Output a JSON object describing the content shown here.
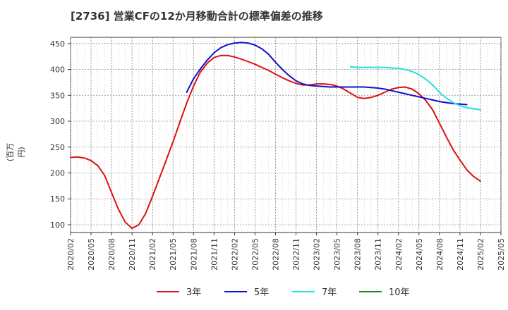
{
  "chart_data": {
    "type": "line",
    "title": "[2736]  営業CFの12か月移動合計の標準偏差の推移",
    "ylabel": "(百万円)",
    "xlabel": "",
    "ylim": [
      85,
      462
    ],
    "yticks": [
      100,
      150,
      200,
      250,
      300,
      350,
      400,
      450
    ],
    "x_ticks": [
      "2020/02",
      "2020/05",
      "2020/08",
      "2020/11",
      "2021/02",
      "2021/05",
      "2021/08",
      "2021/11",
      "2022/02",
      "2022/05",
      "2022/08",
      "2022/11",
      "2023/02",
      "2023/05",
      "2023/08",
      "2023/11",
      "2024/02",
      "2024/05",
      "2024/08",
      "2024/11",
      "2025/02",
      "2025/05"
    ],
    "grid": true,
    "legend_position": "bottom",
    "series": [
      {
        "name": "3年",
        "color": "#dd1111",
        "start": "2020/02",
        "values": [
          230,
          231,
          229,
          224,
          214,
          195,
          162,
          130,
          105,
          93,
          100,
          122,
          155,
          190,
          225,
          260,
          298,
          335,
          368,
          395,
          412,
          423,
          427,
          427,
          424,
          420,
          415,
          410,
          404,
          398,
          391,
          384,
          378,
          373,
          370,
          370,
          372,
          372,
          371,
          368,
          362,
          354,
          346,
          344,
          346,
          350,
          356,
          362,
          365,
          366,
          362,
          353,
          340,
          322,
          296,
          270,
          245,
          225,
          206,
          193,
          184
        ]
      },
      {
        "name": "5年",
        "color": "#1111cc",
        "start": "2021/07",
        "values": [
          356,
          382,
          401,
          418,
          432,
          442,
          448,
          451,
          452,
          451,
          447,
          440,
          429,
          414,
          400,
          388,
          378,
          372,
          369,
          368,
          367,
          366,
          366,
          366,
          366,
          366,
          366,
          365,
          364,
          362,
          359,
          356,
          353,
          350,
          347,
          344,
          341,
          338,
          336,
          334,
          333,
          332
        ]
      },
      {
        "name": "7年",
        "color": "#22e0e0",
        "start": "2023/07",
        "values": [
          405,
          404,
          404,
          404,
          404,
          404,
          403,
          402,
          400,
          396,
          390,
          381,
          370,
          356,
          345,
          336,
          330,
          326,
          324,
          322
        ]
      },
      {
        "name": "10年",
        "color": "#228822",
        "start": "",
        "values": []
      }
    ]
  }
}
